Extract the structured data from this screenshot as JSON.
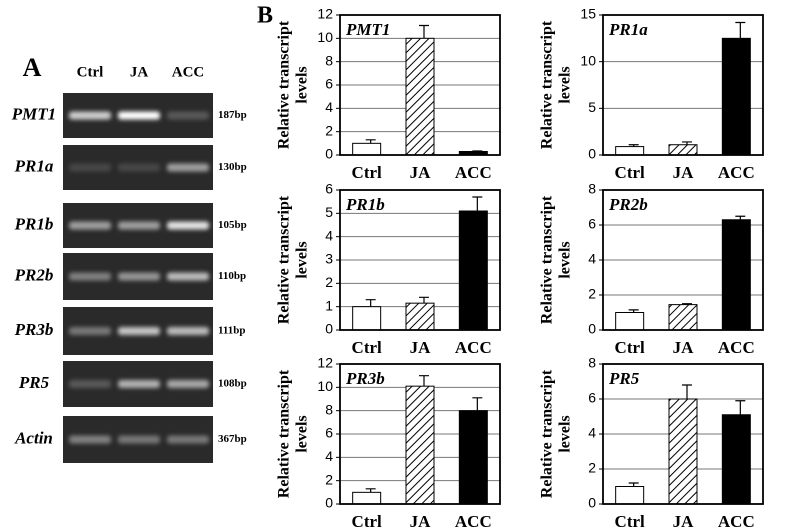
{
  "panel_b_label": "B",
  "gel": {
    "label": "A",
    "columns": [
      "Ctrl",
      "JA",
      "ACC"
    ],
    "rows": [
      {
        "gene": "PMT1",
        "size": "187bp"
      },
      {
        "gene": "PR1a",
        "size": "130bp"
      },
      {
        "gene": "PR1b",
        "size": "105bp"
      },
      {
        "gene": "PR2b",
        "size": "110bp"
      },
      {
        "gene": "PR3b",
        "size": "111bp"
      },
      {
        "gene": "PR5",
        "size": "108bp"
      },
      {
        "gene": "Actin",
        "size": "367bp"
      }
    ]
  },
  "chart_data": [
    {
      "type": "bar",
      "title": "PMT1",
      "ylabel": [
        "Relative transcript",
        "levels"
      ],
      "categories": [
        "Ctrl",
        "JA",
        "ACC"
      ],
      "values": [
        1.0,
        10.0,
        0.3
      ],
      "errors": [
        0.3,
        1.1,
        0.05
      ],
      "fills": [
        "white",
        "hatched",
        "black"
      ],
      "ylim": [
        0,
        12
      ],
      "yticks": [
        0,
        2,
        4,
        6,
        8,
        10,
        12
      ],
      "grid": true
    },
    {
      "type": "bar",
      "title": "PR1a",
      "ylabel": [
        "Relative transcript",
        "levels"
      ],
      "categories": [
        "Ctrl",
        "JA",
        "ACC"
      ],
      "values": [
        0.9,
        1.1,
        12.5
      ],
      "errors": [
        0.2,
        0.3,
        1.7
      ],
      "fills": [
        "white",
        "hatched",
        "black"
      ],
      "ylim": [
        0,
        15
      ],
      "yticks": [
        0,
        5,
        10,
        15
      ],
      "grid": true
    },
    {
      "type": "bar",
      "title": "PR1b",
      "ylabel": [
        "Relative transcript",
        "levels"
      ],
      "categories": [
        "Ctrl",
        "JA",
        "ACC"
      ],
      "values": [
        1.0,
        1.15,
        5.1
      ],
      "errors": [
        0.3,
        0.25,
        0.6
      ],
      "fills": [
        "white",
        "hatched",
        "black"
      ],
      "ylim": [
        0,
        6
      ],
      "yticks": [
        0,
        1,
        2,
        3,
        4,
        5,
        6
      ],
      "grid": true
    },
    {
      "type": "bar",
      "title": "PR2b",
      "ylabel": [
        "Relative transcript",
        "levels"
      ],
      "categories": [
        "Ctrl",
        "JA",
        "ACC"
      ],
      "values": [
        1.0,
        1.45,
        6.3
      ],
      "errors": [
        0.15,
        0.05,
        0.2
      ],
      "fills": [
        "white",
        "hatched",
        "black"
      ],
      "ylim": [
        0,
        8
      ],
      "yticks": [
        0,
        2,
        4,
        6,
        8
      ],
      "grid": true
    },
    {
      "type": "bar",
      "title": "PR3b",
      "ylabel": [
        "Relative transcript",
        "levels"
      ],
      "categories": [
        "Ctrl",
        "JA",
        "ACC"
      ],
      "values": [
        1.0,
        10.1,
        8.0
      ],
      "errors": [
        0.3,
        0.9,
        1.1
      ],
      "fills": [
        "white",
        "hatched",
        "black"
      ],
      "ylim": [
        0,
        12
      ],
      "yticks": [
        0,
        2,
        4,
        6,
        8,
        10,
        12
      ],
      "grid": true
    },
    {
      "type": "bar",
      "title": "PR5",
      "ylabel": [
        "Relative transcript",
        "levels"
      ],
      "categories": [
        "Ctrl",
        "JA",
        "ACC"
      ],
      "values": [
        1.0,
        6.0,
        5.1
      ],
      "errors": [
        0.2,
        0.8,
        0.8
      ],
      "fills": [
        "white",
        "hatched",
        "black"
      ],
      "ylim": [
        0,
        8
      ],
      "yticks": [
        0,
        2,
        4,
        6,
        8
      ],
      "grid": true
    }
  ]
}
